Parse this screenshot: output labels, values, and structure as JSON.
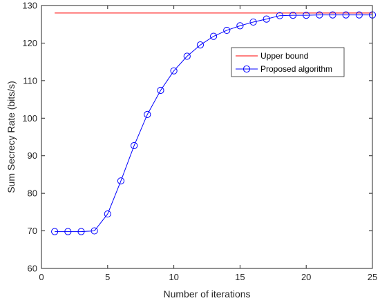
{
  "chart_data": {
    "type": "line",
    "title": "",
    "xlabel": "Number of iterations",
    "ylabel": "Sum Secrecy Rate (bits/s)",
    "xlim": [
      0,
      25
    ],
    "ylim": [
      60,
      130
    ],
    "xticks": [
      0,
      5,
      10,
      15,
      20,
      25
    ],
    "yticks": [
      60,
      70,
      80,
      90,
      100,
      110,
      120,
      130
    ],
    "grid": false,
    "legend_position": "top-right",
    "series": [
      {
        "name": "Upper bound",
        "color": "#ff0000",
        "marker": "none",
        "x": [
          1,
          25
        ],
        "y": [
          128,
          128
        ]
      },
      {
        "name": "Proposed algorithm",
        "color": "#0000ff",
        "marker": "circle",
        "x": [
          1,
          2,
          3,
          4,
          5,
          6,
          7,
          8,
          9,
          10,
          11,
          12,
          13,
          14,
          15,
          16,
          17,
          18,
          19,
          20,
          21,
          22,
          23,
          24,
          25
        ],
        "y": [
          69.8,
          69.8,
          69.8,
          70.0,
          74.5,
          83.3,
          92.7,
          101.0,
          107.4,
          112.6,
          116.5,
          119.5,
          121.8,
          123.4,
          124.6,
          125.6,
          126.4,
          127.3,
          127.4,
          127.4,
          127.5,
          127.5,
          127.5,
          127.5,
          127.5
        ]
      }
    ]
  }
}
